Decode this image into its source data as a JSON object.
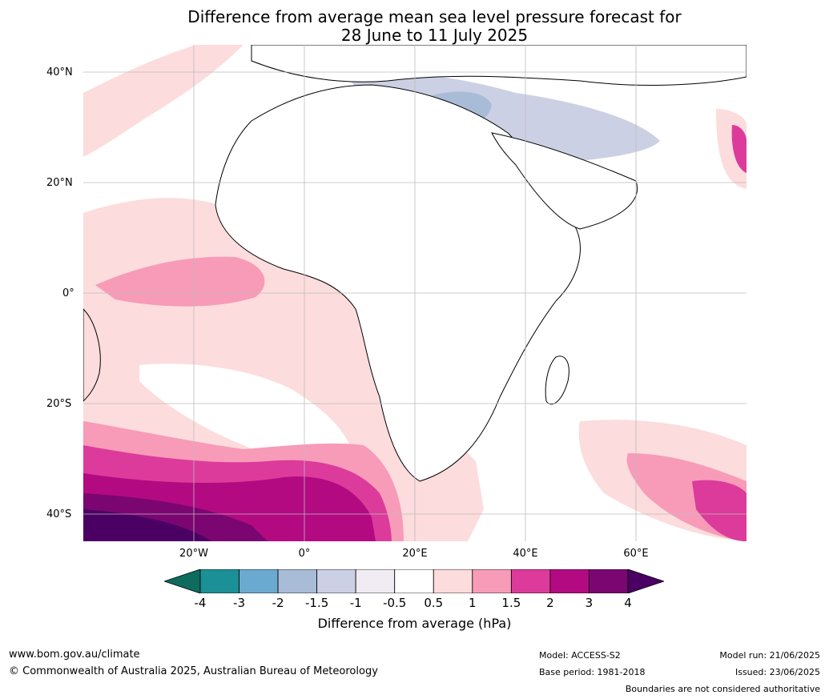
{
  "title_line1": "Difference from average mean sea level pressure forecast for",
  "title_line2": "28 June to 11 July 2025",
  "lat_labels": [
    "40°N",
    "20°N",
    "0°",
    "20°S",
    "40°S"
  ],
  "lon_labels": [
    "20°W",
    "0°",
    "20°E",
    "40°E",
    "60°E"
  ],
  "colorbar": {
    "ticks": [
      "-4",
      "-3",
      "-2",
      "-1.5",
      "-1",
      "-0.5",
      "0.5",
      "1",
      "1.5",
      "2",
      "3",
      "4"
    ],
    "label": "Difference from average (hPa)",
    "colors": [
      "#0e6b5d",
      "#1b9096",
      "#6baad0",
      "#a8bcd8",
      "#ccd0e4",
      "#f1ebf3",
      "#ffffff",
      "#fcdcdc",
      "#f79bb9",
      "#dc3b9b",
      "#b30a82",
      "#7b0671",
      "#4a0163"
    ]
  },
  "footer": {
    "website": "www.bom.gov.au/climate",
    "copyright": "© Commonwealth of Australia 2025, Australian Bureau of Meteorology",
    "model": "Model: ACCESS-S2",
    "base_period": "Base period: 1981-2018",
    "model_run": "Model run: 21/06/2025",
    "issued": "Issued: 23/06/2025",
    "disclaimer": "Boundaries are not considered authoritative"
  }
}
